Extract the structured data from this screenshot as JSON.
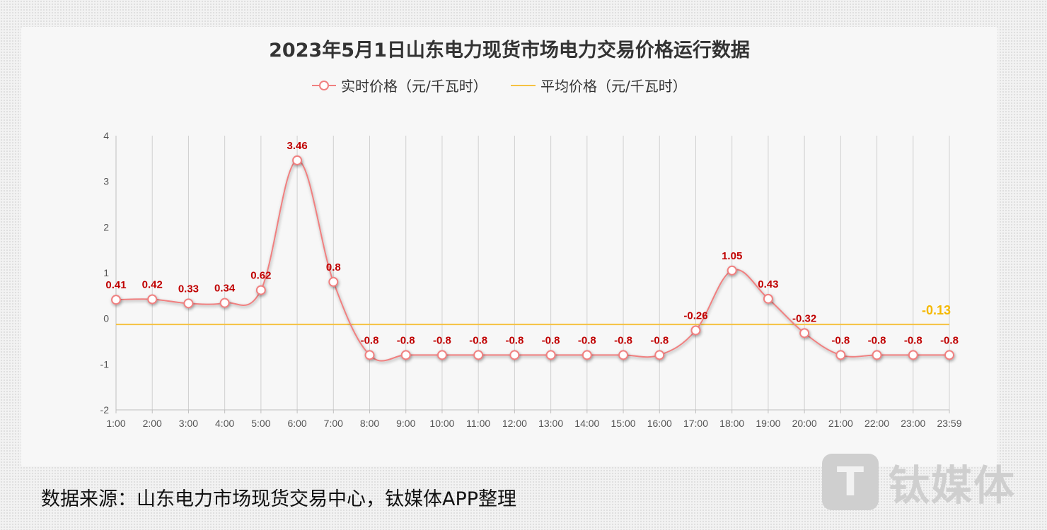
{
  "chart_data": {
    "type": "line",
    "title": "2023年5月1日山东电力现货市场电力交易价格运行数据",
    "x": [
      "1:00",
      "2:00",
      "3:00",
      "4:00",
      "5:00",
      "6:00",
      "7:00",
      "8:00",
      "9:00",
      "10:00",
      "11:00",
      "12:00",
      "13:00",
      "14:00",
      "15:00",
      "16:00",
      "17:00",
      "18:00",
      "19:00",
      "20:00",
      "21:00",
      "22:00",
      "23:00",
      "23:59"
    ],
    "series": [
      {
        "name": "实时价格（元/千瓦时）",
        "values": [
          0.41,
          0.42,
          0.33,
          0.34,
          0.62,
          3.46,
          0.8,
          -0.8,
          -0.8,
          -0.8,
          -0.8,
          -0.8,
          -0.8,
          -0.8,
          -0.8,
          -0.8,
          -0.26,
          1.05,
          0.43,
          -0.32,
          -0.8,
          -0.8,
          -0.8,
          -0.8
        ],
        "labels": [
          "0.41",
          "0.42",
          "0.33",
          "0.34",
          "0.62",
          "3.46",
          "0.8",
          "-0.8",
          "-0.8",
          "-0.8",
          "-0.8",
          "-0.8",
          "-0.8",
          "-0.8",
          "-0.8",
          "-0.8",
          "-0.26",
          "1.05",
          "0.43",
          "-0.32",
          "-0.8",
          "-0.8",
          "-0.8",
          "-0.8"
        ],
        "color": "#f08080"
      },
      {
        "name": "平均价格（元/千瓦时）",
        "value": -0.13,
        "label": "-0.13",
        "color": "#f5c242"
      }
    ],
    "yticks": [
      "4",
      "3",
      "2",
      "1",
      "0",
      "-1",
      "-2"
    ],
    "ylim": [
      -2,
      4
    ],
    "grid": "vertical",
    "legend": "top-center"
  },
  "source_text": "数据来源：山东电力市场现货交易中心，钛媒体APP整理",
  "watermark": {
    "logo_glyph": "T",
    "text": "钛媒体"
  }
}
